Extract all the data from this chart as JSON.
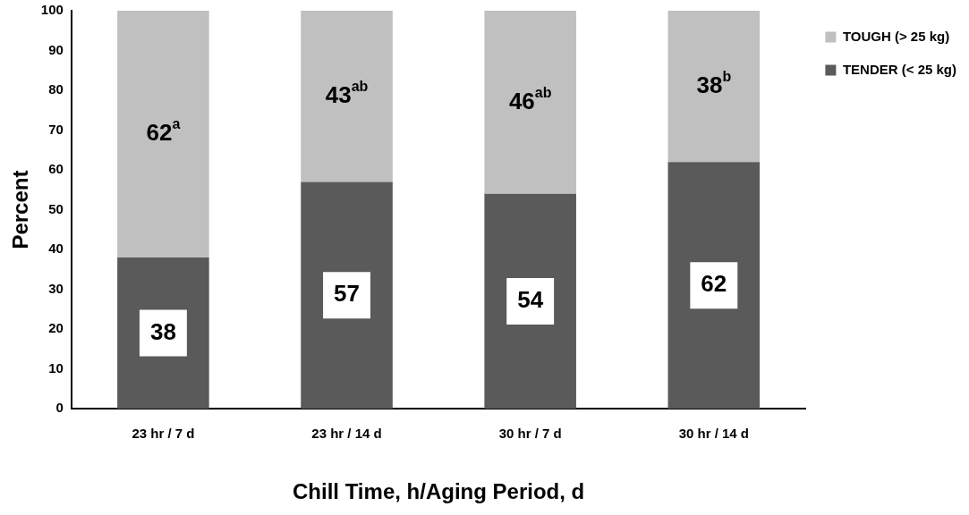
{
  "chart_data": {
    "type": "bar",
    "stacked": true,
    "xlabel": "Chill Time, h/Aging Period, d",
    "ylabel": "Percent",
    "categories": [
      "23 hr / 7 d",
      "23 hr / 14 d",
      "30 hr / 7 d",
      "30 hr / 14 d"
    ],
    "series": [
      {
        "name": "TENDER (< 25 kg)",
        "color": "#5a5a5a",
        "values": [
          38,
          57,
          54,
          62
        ],
        "value_labels": [
          "38",
          "57",
          "54",
          "62"
        ]
      },
      {
        "name": "TOUGH (> 25 kg)",
        "color": "#c0c0c0",
        "values": [
          62,
          43,
          46,
          38
        ],
        "value_labels": [
          "62$^{a}$",
          "43$^{ab}$",
          "46$^{ab}$",
          "38$^{b}$"
        ]
      }
    ],
    "ylim": [
      0,
      100
    ],
    "yticks": [
      0,
      10,
      20,
      30,
      40,
      50,
      60,
      70,
      80,
      90,
      100
    ],
    "grid": false,
    "legend": "top right"
  }
}
